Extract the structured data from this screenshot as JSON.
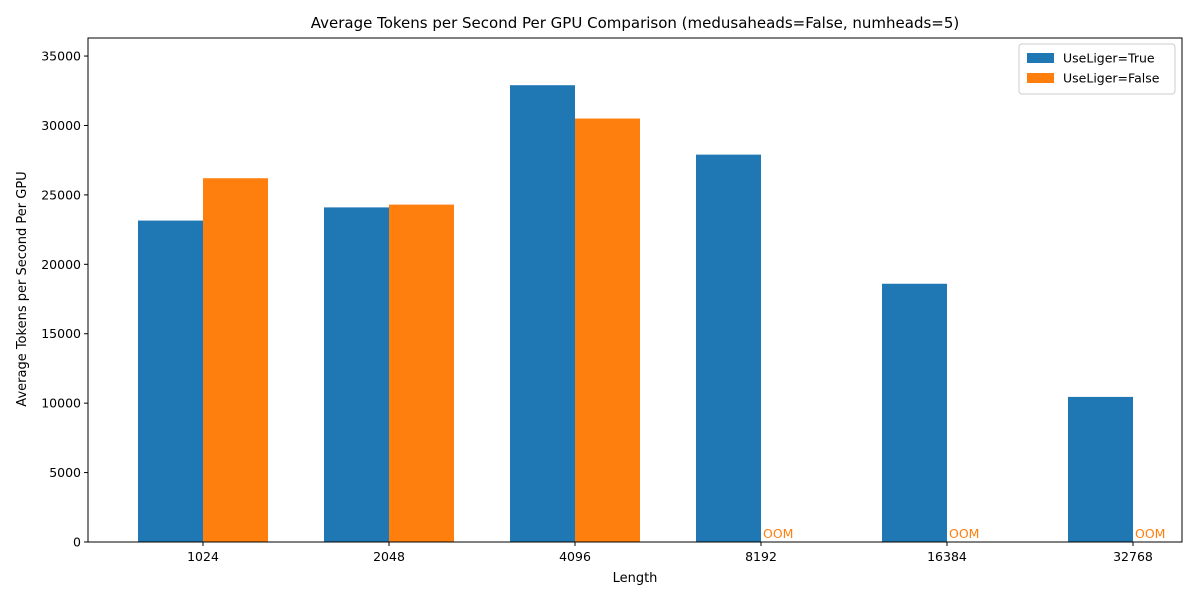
{
  "chart_data": {
    "type": "bar",
    "title": "Average Tokens per Second Per GPU Comparison (medusaheads=False, numheads=5)",
    "xlabel": "Length",
    "ylabel": "Average Tokens per Second Per GPU",
    "categories": [
      "1024",
      "2048",
      "4096",
      "8192",
      "16384",
      "32768"
    ],
    "series": [
      {
        "name": "UseLiger=True",
        "color": "#1f77b4",
        "values": [
          23150,
          24100,
          32900,
          27900,
          18600,
          10450
        ]
      },
      {
        "name": "UseLiger=False",
        "color": "#ff7f0e",
        "values": [
          26200,
          24300,
          30500,
          null,
          null,
          null
        ]
      }
    ],
    "missing_label": "OOM",
    "ylim": [
      0,
      36300
    ],
    "yticks": [
      0,
      5000,
      10000,
      15000,
      20000,
      25000,
      30000,
      35000
    ],
    "legend": "top-right",
    "grid": false
  }
}
